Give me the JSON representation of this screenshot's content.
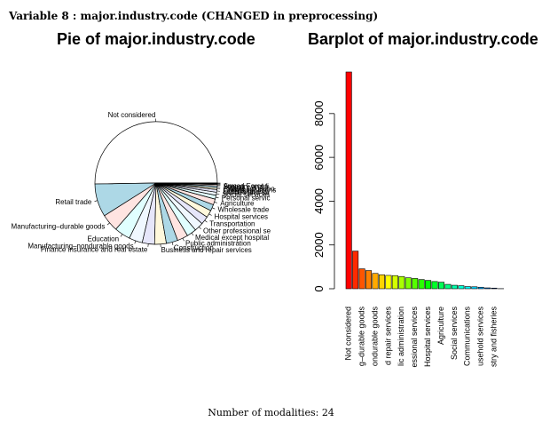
{
  "header": {
    "title": "Variable 8 : major.industry.code (CHANGED in preprocessing)"
  },
  "footer": {
    "label": "Number of modalities:",
    "value": "24"
  },
  "chart_data": [
    {
      "type": "pie",
      "title": "Pie of major.industry.code",
      "labels": [
        "Not considered",
        "Retail trade",
        "Manufacturing-durable goods",
        "Education",
        "Manufacturing-nondurable goods",
        "Finance insurance and real estate",
        "Business and repair services",
        "Construction",
        "Public administration",
        "Medical except hospital",
        "Other professional services",
        "Transportation",
        "Hospital services",
        "Wholesale trade",
        "Agriculture",
        "Personal services",
        "Social services",
        "Entertainment",
        "Utilities and sanitary services",
        "Communications",
        "Private household services",
        "Mining",
        "Forestry and fisheries",
        "Armed Forces"
      ],
      "display_labels": [
        "Not considered",
        "Retail trade",
        "Manufacturing–durable goods",
        "Education",
        "Manufacturing–nondurable goods",
        "Finance insurance and real estate",
        "Business and repair services",
        "Construction",
        "Public administration",
        "Medical except hospital",
        "Other professional se",
        "Transportation",
        "Hospital services",
        "Wholesale trade",
        "Agriculture",
        "Personal servic",
        "Social services",
        "Entertainment",
        "Utilities and sa",
        "Communications",
        "Private househo",
        "Mining",
        "Forestry and fi",
        "Armed Forces"
      ],
      "values": [
        9900,
        1720,
        910,
        830,
        700,
        640,
        610,
        600,
        560,
        500,
        470,
        420,
        380,
        330,
        300,
        200,
        160,
        140,
        100,
        90,
        70,
        40,
        30,
        5
      ],
      "colors": [
        "#FFFFFF",
        "#ADD8E6",
        "#FFE4E1",
        "#E0FFFF",
        "#F0F8FF",
        "#E6E6FA",
        "#FFF8DC",
        "#ADD8E6",
        "#FFE4E1",
        "#E0FFFF",
        "#F0F8FF",
        "#E6E6FA",
        "#FFF8DC",
        "#ADD8E6",
        "#FFE4E1",
        "#E0FFFF",
        "#F0F8FF",
        "#E6E6FA",
        "#FFF8DC",
        "#ADD8E6",
        "#FFE4E1",
        "#E0FFFF",
        "#F0F8FF",
        "#E6E6FA"
      ]
    },
    {
      "type": "bar",
      "title": "Barplot of major.industry.code",
      "categories": [
        "Not considered",
        "Retail trade",
        "Manufacturing-durable goods",
        "Education",
        "Manufacturing-nondurable goods",
        "Finance insurance and real estate",
        "Business and repair services",
        "Construction",
        "Public administration",
        "Medical except hospital",
        "Other professional services",
        "Transportation",
        "Hospital services",
        "Wholesale trade",
        "Agriculture",
        "Personal services",
        "Social services",
        "Entertainment",
        "Utilities and sanitary services",
        "Communications",
        "Private household services",
        "Mining",
        "Forestry and fisheries",
        "Armed Forces"
      ],
      "values": [
        9900,
        1720,
        910,
        830,
        700,
        640,
        610,
        600,
        560,
        500,
        470,
        420,
        380,
        330,
        300,
        200,
        160,
        140,
        100,
        90,
        70,
        40,
        30,
        5
      ],
      "tick_labels_shown": [
        "Not considered",
        "g–durable goods",
        "ondurable goods",
        "d repair services",
        "lic administration",
        "essional services",
        "Hospital services",
        "Agriculture",
        "Social services",
        "Communications",
        "usehold services",
        "stry and fisheries"
      ],
      "y_ticks": [
        0,
        2000,
        4000,
        6000,
        8000
      ],
      "ylim": [
        0,
        9900
      ],
      "colors": [
        "#FF0000",
        "#FF2A00",
        "#FF5500",
        "#FF8000",
        "#FFAA00",
        "#FFD400",
        "#FFFF00",
        "#D4FF00",
        "#AAFF00",
        "#80FF00",
        "#55FF00",
        "#2AFF00",
        "#00FF00",
        "#00FF2A",
        "#00FF55",
        "#00FF80",
        "#00FFAA",
        "#00FFD4",
        "#00FFFF",
        "#00D4FF",
        "#00AAFF",
        "#0080FF",
        "#0055FF",
        "#002AFF"
      ]
    }
  ]
}
